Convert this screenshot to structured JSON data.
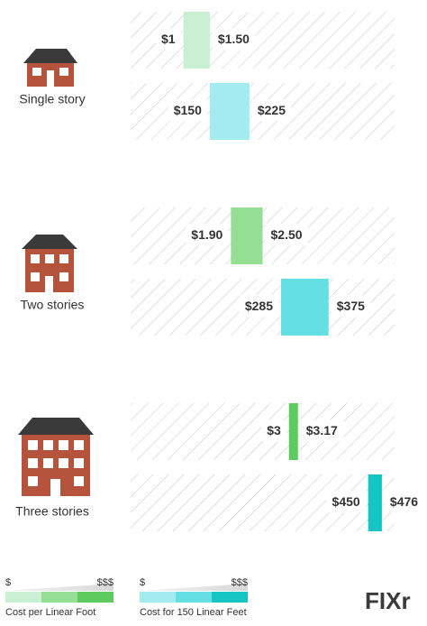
{
  "chart_data": {
    "type": "range_bar",
    "categories": [
      "Single story",
      "Two stories",
      "Three stories"
    ],
    "series": [
      {
        "name": "Cost per Linear Foot",
        "colors": [
          "#c9f0d2",
          "#95df95",
          "#5dcb5d"
        ],
        "low": [
          1,
          1.9,
          3
        ],
        "high": [
          1.5,
          2.5,
          3.17
        ],
        "low_labels": [
          "$1",
          "$1.90",
          "$3"
        ],
        "high_labels": [
          "$1.50",
          "$2.50",
          "$3.17"
        ],
        "xlim": [
          0,
          5
        ]
      },
      {
        "name": "Cost for 150 Linear Feet",
        "colors": [
          "#a3ebee",
          "#66dfe2",
          "#17c4c4"
        ],
        "low": [
          150,
          285,
          450
        ],
        "high": [
          225,
          375,
          476
        ],
        "low_labels": [
          "$150",
          "$285",
          "$450"
        ],
        "high_labels": [
          "$225",
          "$375",
          "$476"
        ],
        "xlim": [
          0,
          500
        ]
      }
    ],
    "legend": {
      "low": "$",
      "high": "$$$"
    },
    "brand": "FIXr"
  }
}
